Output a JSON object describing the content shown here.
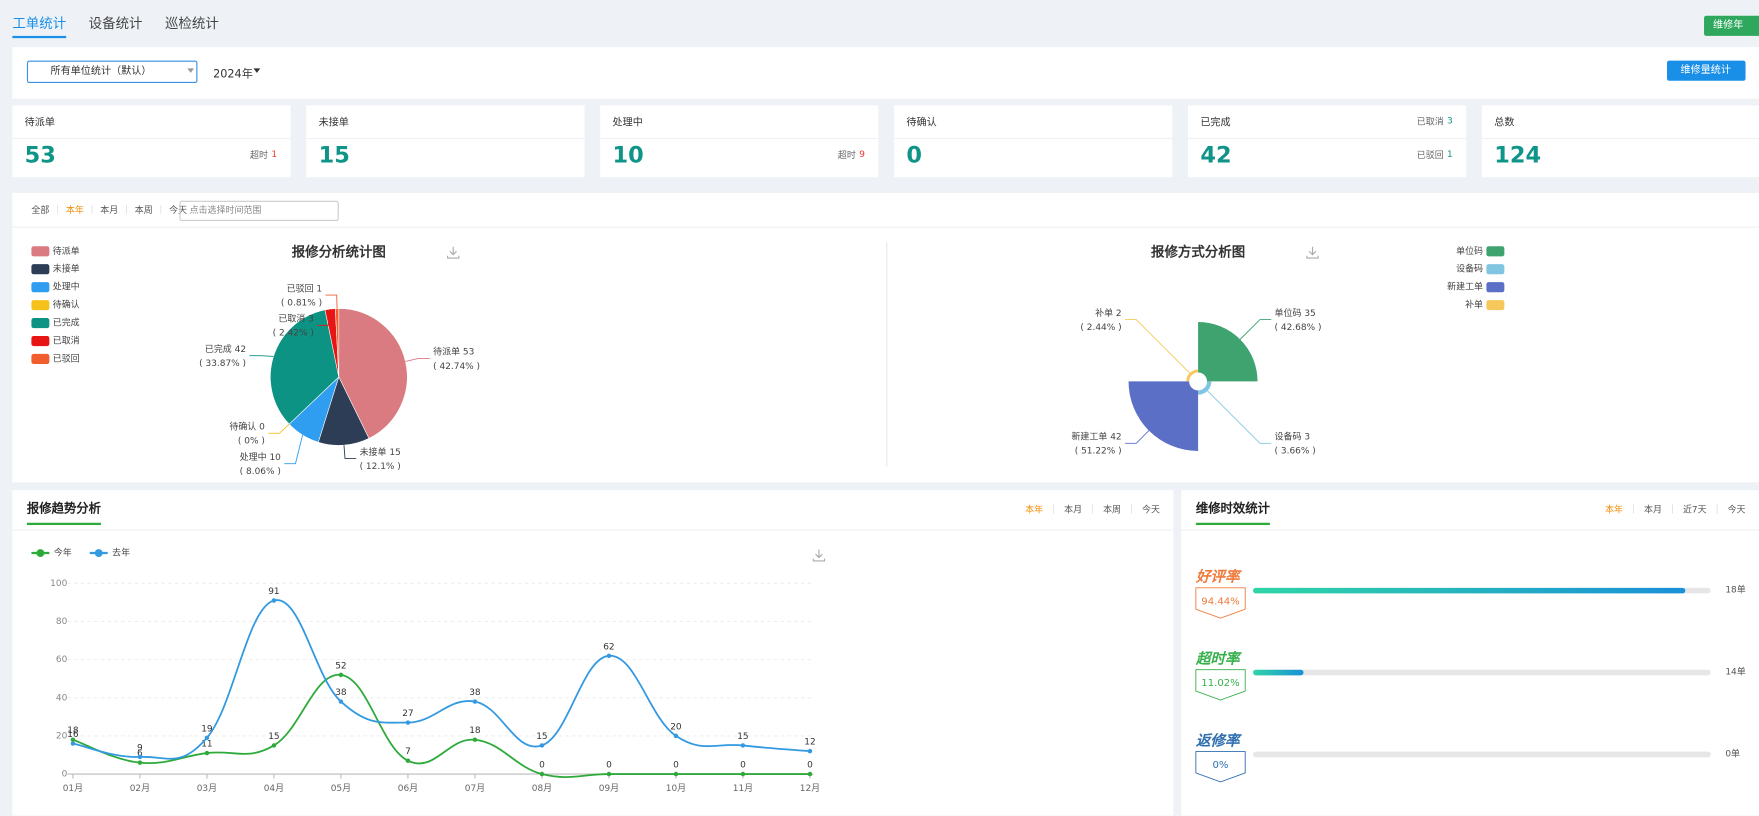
{
  "tabs": [
    "工单统计",
    "设备统计",
    "巡检统计"
  ],
  "top_button": "维修年",
  "filter": {
    "unit_select": "所有单位统计（默认）",
    "year": "2024年",
    "button": "维修量统计"
  },
  "cards": [
    {
      "title": "待派单",
      "value": 53,
      "bottom_note": {
        "label": "超时",
        "value": 1
      }
    },
    {
      "title": "未接单",
      "value": 15
    },
    {
      "title": "处理中",
      "value": 10,
      "bottom_note": {
        "label": "超时",
        "value": 9
      }
    },
    {
      "title": "待确认",
      "value": 0
    },
    {
      "title": "已完成",
      "value": 42,
      "top_note": {
        "label": "已取消",
        "value": 3
      },
      "bottom_note": {
        "label": "已驳回",
        "value": 1
      }
    },
    {
      "title": "总数",
      "value": 124
    }
  ],
  "range_tabs": [
    "全部",
    "本年",
    "本月",
    "本周",
    "今天"
  ],
  "range_placeholder": "点击选择时间范围",
  "chart_data": [
    {
      "type": "pie",
      "title": "报修分析统计图",
      "legend": "left",
      "categories": [
        "待派单",
        "未接单",
        "处理中",
        "待确认",
        "已完成",
        "已取消",
        "已驳回"
      ],
      "values": [
        53,
        15,
        10,
        0,
        42,
        3,
        1
      ],
      "value_labels": [
        "( 42.74% )",
        "( 12.1% )",
        "( 8.06% )",
        "( 0% )",
        "( 33.87% )",
        "( 2.42% )",
        "( 0.81% )"
      ],
      "colors": [
        "#d97b80",
        "#2d3d55",
        "#2f9ef0",
        "#f5c21c",
        "#0d9384",
        "#e81515",
        "#f25d2e"
      ]
    },
    {
      "type": "pie",
      "rose": true,
      "title": "报修方式分析图",
      "legend": "right",
      "categories": [
        "单位码",
        "设备码",
        "新建工单",
        "补单"
      ],
      "values": [
        35,
        3,
        42,
        2
      ],
      "value_labels": [
        "( 42.68% )",
        "( 3.66% )",
        "( 51.22% )",
        "( 2.44% )"
      ],
      "colors": [
        "#3fa36f",
        "#80c6e2",
        "#5b6fc7",
        "#f6c85c"
      ]
    },
    {
      "type": "line",
      "title": "报修趋势分析",
      "smooth": true,
      "grid": true,
      "legend": "top-left",
      "categories": [
        "01月",
        "02月",
        "03月",
        "04月",
        "05月",
        "06月",
        "07月",
        "08月",
        "09月",
        "10月",
        "11月",
        "12月"
      ],
      "series": [
        {
          "name": "今年",
          "color": "#2eaa3b",
          "values": [
            18,
            6,
            11,
            15,
            52,
            7,
            18,
            0,
            0,
            0,
            0,
            0
          ]
        },
        {
          "name": "去年",
          "color": "#3399e0",
          "values": [
            16,
            9,
            19,
            91,
            38,
            27,
            38,
            15,
            62,
            20,
            15,
            12
          ]
        }
      ],
      "ylim": [
        0,
        100
      ],
      "yticks": [
        0,
        20,
        40,
        60,
        80,
        100
      ],
      "tabs": [
        "本年",
        "本月",
        "本周",
        "今天"
      ]
    }
  ],
  "efficiency": {
    "title": "维修时效统计",
    "tabs": [
      "本年",
      "本月",
      "近7天",
      "今天"
    ],
    "rows": [
      {
        "label": "好评率",
        "value": 94.44,
        "value_label": "94.44%",
        "count": "18单",
        "color": "#ee7a3b"
      },
      {
        "label": "超时率",
        "value": 11.02,
        "value_label": "11.02%",
        "count": "14单",
        "color": "#35b04a"
      },
      {
        "label": "返修率",
        "value": 0,
        "value_label": "0%",
        "count": "0单",
        "color": "#2f6fb0"
      }
    ]
  }
}
